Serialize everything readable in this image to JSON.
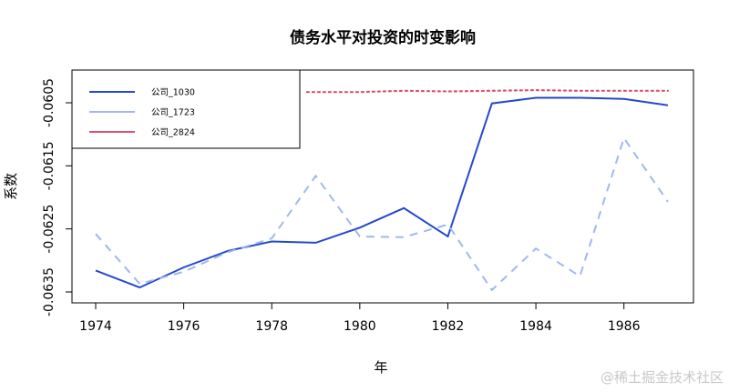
{
  "watermark": "@稀土掘金技术社区",
  "chart_data": {
    "type": "line",
    "title": "债务水平对投资的时变影响",
    "xlabel": "年",
    "ylabel": "系数",
    "xlim": [
      1974,
      1987
    ],
    "ylim": [
      -0.0636,
      -0.0606
    ],
    "x_ticks": [
      1974,
      1976,
      1978,
      1980,
      1982,
      1984,
      1986
    ],
    "y_ticks": [
      -0.0635,
      -0.0625,
      -0.0615,
      -0.0605
    ],
    "y_tick_labels": [
      "-0.0635",
      "-0.0625",
      "-0.0615",
      "-0.0605"
    ],
    "grid": false,
    "legend_position": "top-left",
    "x": [
      1974,
      1975,
      1976,
      1977,
      1978,
      1979,
      1980,
      1981,
      1982,
      1983,
      1984,
      1985,
      1986,
      1987
    ],
    "series": [
      {
        "name": "公司_1030",
        "color": "#2549cc",
        "style": "solid",
        "values": [
          -0.06316,
          -0.06343,
          -0.06311,
          -0.06285,
          -0.0627,
          -0.06272,
          -0.06248,
          -0.06217,
          -0.06262,
          -0.06051,
          -0.06042,
          -0.06042,
          -0.06044,
          -0.06054
        ]
      },
      {
        "name": "公司_1723",
        "color": "#9fb8ef",
        "style": "dashed",
        "values": [
          -0.06258,
          -0.06337,
          -0.06318,
          -0.06287,
          -0.06265,
          -0.06166,
          -0.06262,
          -0.06263,
          -0.06243,
          -0.06347,
          -0.06281,
          -0.06325,
          -0.06106,
          -0.06207
        ]
      },
      {
        "name": "公司_2824",
        "color": "#e0506c",
        "style": "dotted",
        "x_start": 1978.8,
        "values": [
          null,
          null,
          null,
          null,
          null,
          -0.06033,
          -0.06033,
          -0.06031,
          -0.06032,
          -0.06031,
          -0.0603,
          -0.06031,
          -0.06031,
          -0.06031
        ]
      }
    ]
  }
}
